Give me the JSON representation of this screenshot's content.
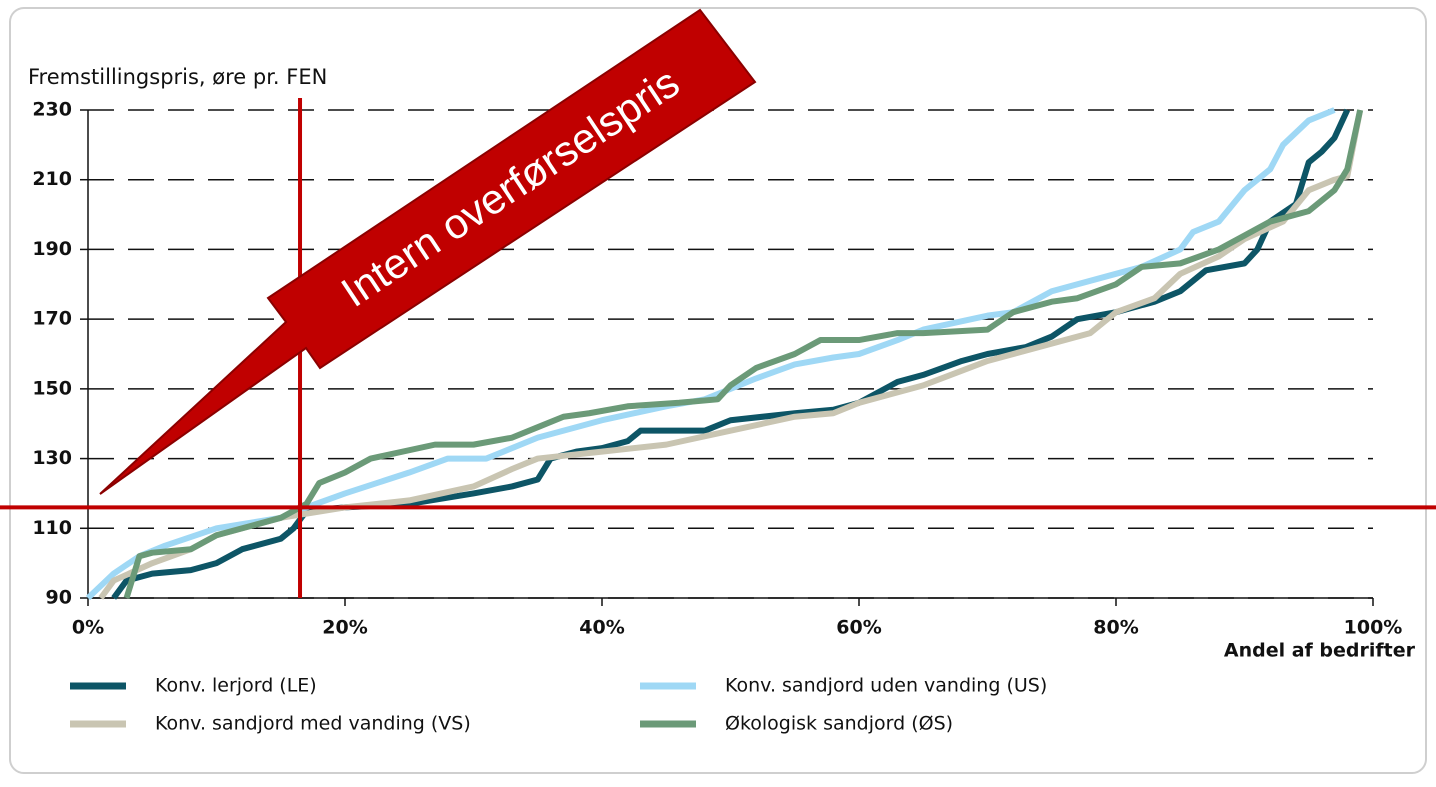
{
  "chart_data": {
    "type": "line",
    "y_axis_label": "Fremstillingspris, øre pr. FEN",
    "x_axis_label": "Andel af bedrifter",
    "annotation": "Intern overførselspris",
    "reference_lines": {
      "x": 16.5,
      "y": 116,
      "color": "#c00000"
    },
    "xlim": [
      0,
      100
    ],
    "xticks": [
      {
        "value": 0,
        "label": "0%"
      },
      {
        "value": 20,
        "label": "20%"
      },
      {
        "value": 40,
        "label": "40%"
      },
      {
        "value": 60,
        "label": "60%"
      },
      {
        "value": 80,
        "label": "80%"
      },
      {
        "value": 100,
        "label": "100%"
      }
    ],
    "ylim": [
      90,
      230
    ],
    "yticks": [
      90,
      110,
      130,
      150,
      170,
      190,
      210,
      230
    ],
    "grid": true,
    "series": [
      {
        "name": "Konv. lerjord (LE)",
        "color": "#0d5566",
        "x": [
          2,
          3,
          5,
          8,
          10,
          12,
          15,
          16,
          17,
          20,
          25,
          30,
          33,
          35,
          36,
          38,
          40,
          42,
          43,
          48,
          50,
          55,
          58,
          60,
          63,
          65,
          68,
          70,
          73,
          75,
          77,
          80,
          83,
          85,
          87,
          90,
          91,
          92,
          94,
          95,
          96,
          97,
          98
        ],
        "values": [
          90,
          95,
          97,
          98,
          100,
          104,
          107,
          110,
          115,
          116,
          117,
          120,
          122,
          124,
          130,
          132,
          133,
          135,
          138,
          138,
          141,
          143,
          144,
          146,
          152,
          154,
          158,
          160,
          162,
          165,
          170,
          172,
          175,
          178,
          184,
          186,
          190,
          198,
          203,
          215,
          218,
          222,
          230
        ]
      },
      {
        "name": "Konv. sandjord uden vanding (US)",
        "color": "#9fd8f5",
        "x": [
          0,
          2,
          4,
          6,
          10,
          15,
          17,
          20,
          25,
          28,
          31,
          35,
          40,
          45,
          48,
          50,
          52,
          55,
          58,
          60,
          63,
          65,
          70,
          72,
          75,
          80,
          82,
          85,
          86,
          88,
          90,
          92,
          93,
          95,
          97
        ],
        "values": [
          90,
          97,
          102,
          105,
          110,
          113,
          116,
          120,
          126,
          130,
          130,
          136,
          141,
          145,
          147,
          150,
          153,
          157,
          159,
          160,
          164,
          167,
          171,
          172,
          178,
          183,
          185,
          190,
          195,
          198,
          207,
          213,
          220,
          227,
          230
        ]
      },
      {
        "name": "Konv. sandjord med vanding (VS)",
        "color": "#c9c5b2",
        "x": [
          1,
          2,
          5,
          8,
          10,
          15,
          20,
          25,
          30,
          33,
          35,
          40,
          45,
          50,
          55,
          58,
          60,
          65,
          70,
          75,
          78,
          80,
          83,
          85,
          88,
          90,
          93,
          95,
          97,
          98,
          99
        ],
        "values": [
          90,
          95,
          100,
          104,
          108,
          113,
          116,
          118,
          122,
          127,
          130,
          132,
          134,
          138,
          142,
          143,
          146,
          151,
          158,
          163,
          166,
          172,
          176,
          183,
          188,
          193,
          198,
          207,
          210,
          211,
          230
        ]
      },
      {
        "name": "Økologisk sandjord (ØS)",
        "color": "#6b9a78",
        "x": [
          3,
          4,
          5,
          8,
          10,
          15,
          17,
          18,
          20,
          22,
          27,
          30,
          33,
          35,
          37,
          39,
          42,
          46,
          49,
          50,
          52,
          55,
          57,
          60,
          63,
          65,
          70,
          72,
          75,
          77,
          80,
          82,
          85,
          88,
          90,
          92,
          95,
          97,
          98,
          99
        ],
        "values": [
          90,
          102,
          103,
          104,
          108,
          113,
          117,
          123,
          126,
          130,
          134,
          134,
          136,
          139,
          142,
          143,
          145,
          146,
          147,
          151,
          156,
          160,
          164,
          164,
          166,
          166,
          167,
          172,
          175,
          176,
          180,
          185,
          186,
          190,
          194,
          198,
          201,
          207,
          213,
          230
        ]
      }
    ]
  }
}
